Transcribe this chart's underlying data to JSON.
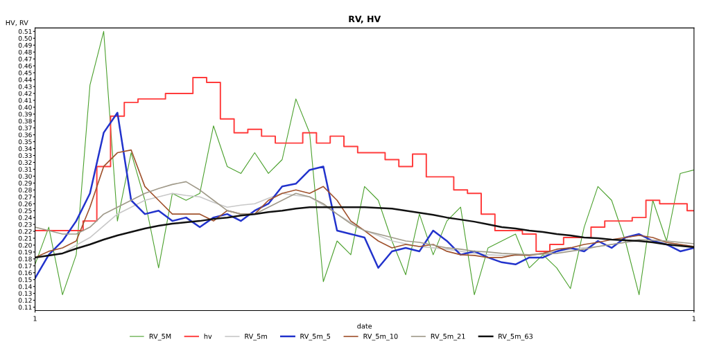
{
  "chart_data": {
    "type": "line",
    "title": "RV, HV",
    "xlabel": "date",
    "ylabel": "HV, RV",
    "categories": [
      "1",
      null,
      null,
      null,
      null,
      null,
      null,
      null,
      null,
      null,
      null,
      null,
      null,
      null,
      null,
      null,
      null,
      null,
      null,
      null,
      null,
      null,
      null,
      null,
      null,
      null,
      null,
      null,
      null,
      null,
      null,
      null,
      null,
      null,
      null,
      null,
      null,
      null,
      null,
      null,
      null,
      null,
      null,
      null,
      null,
      null,
      null,
      null,
      "1"
    ],
    "ylim": [
      0.105,
      0.515
    ],
    "yticks": [
      0.11,
      0.12,
      0.13,
      0.14,
      0.15,
      0.16,
      0.17,
      0.18,
      0.19,
      {
        "value": 0.2,
        "label": "0.20"
      },
      0.21,
      0.22,
      0.23,
      0.24,
      0.25,
      0.26,
      0.27,
      0.28,
      0.29,
      {
        "value": 0.3,
        "label": "0.30"
      },
      0.31,
      0.32,
      0.33,
      0.34,
      0.35,
      0.36,
      0.37,
      0.38,
      0.39,
      {
        "value": 0.4,
        "label": "0.40"
      },
      0.41,
      0.42,
      0.43,
      0.44,
      0.45,
      0.46,
      0.47,
      0.48,
      0.49,
      {
        "value": 0.5,
        "label": "0.50"
      },
      0.51
    ],
    "legend": "bottom",
    "series": [
      {
        "name": "RV_5M",
        "color": "#4aa02c",
        "values": [
          0.172,
          0.226,
          0.128,
          0.186,
          0.432,
          0.51,
          0.235,
          0.334,
          0.265,
          0.167,
          0.275,
          0.265,
          0.275,
          0.373,
          0.314,
          0.304,
          0.334,
          0.304,
          0.324,
          0.412,
          0.363,
          0.147,
          0.206,
          0.186,
          0.285,
          0.265,
          0.206,
          0.157,
          0.245,
          0.186,
          0.235,
          0.255,
          0.128,
          0.196,
          0.206,
          0.216,
          0.167,
          0.186,
          0.167,
          0.137,
          0.226,
          0.285,
          0.265,
          0.206,
          0.128,
          0.265,
          0.206,
          0.304,
          0.309
        ]
      },
      {
        "name": "hv",
        "color": "#ff3b3b",
        "type": "step",
        "values": [
          0.221,
          0.221,
          0.221,
          0.221,
          0.235,
          0.314,
          0.387,
          0.407,
          0.412,
          0.412,
          0.42,
          0.42,
          0.443,
          0.436,
          0.383,
          0.363,
          0.368,
          0.358,
          0.348,
          0.348,
          0.363,
          0.348,
          0.358,
          0.343,
          0.334,
          0.334,
          0.324,
          0.314,
          0.332,
          0.299,
          0.299,
          0.28,
          0.275,
          0.245,
          0.221,
          0.221,
          0.216,
          0.191,
          0.201,
          0.211,
          0.211,
          0.226,
          0.235,
          0.235,
          0.24,
          0.265,
          0.26,
          0.26,
          0.25
        ]
      },
      {
        "name": "RV_5m",
        "color": "#c8c8c8",
        "values": [
          0.182,
          0.185,
          0.188,
          0.2,
          0.211,
          0.228,
          0.245,
          0.255,
          0.265,
          0.27,
          0.275,
          0.272,
          0.27,
          0.262,
          0.255,
          0.258,
          0.26,
          0.268,
          0.275,
          0.272,
          0.27,
          0.258,
          0.245,
          0.233,
          0.221,
          0.214,
          0.206,
          0.202,
          0.198,
          0.196,
          0.194,
          0.191,
          0.188,
          0.186,
          0.185,
          0.185,
          0.186,
          0.188,
          0.191,
          0.194,
          0.196,
          0.198,
          0.201,
          0.204,
          0.206,
          0.205,
          0.204,
          0.201,
          0.198
        ]
      },
      {
        "name": "RV_5m_5",
        "color": "#2233cc",
        "values": [
          0.152,
          0.186,
          0.206,
          0.235,
          0.275,
          0.363,
          0.392,
          0.265,
          0.245,
          0.25,
          0.235,
          0.24,
          0.226,
          0.24,
          0.245,
          0.235,
          0.25,
          0.26,
          0.285,
          0.289,
          0.309,
          0.314,
          0.221,
          0.216,
          0.211,
          0.167,
          0.191,
          0.196,
          0.191,
          0.221,
          0.206,
          0.186,
          0.191,
          0.182,
          0.175,
          0.172,
          0.182,
          0.182,
          0.191,
          0.196,
          0.191,
          0.206,
          0.196,
          0.211,
          0.216,
          0.206,
          0.201,
          0.191,
          0.196
        ]
      },
      {
        "name": "RV_5m_10",
        "color": "#a0522d",
        "values": [
          0.182,
          0.191,
          0.196,
          0.206,
          0.255,
          0.314,
          0.334,
          0.338,
          0.285,
          0.265,
          0.245,
          0.245,
          0.245,
          0.235,
          0.25,
          0.245,
          0.245,
          0.265,
          0.275,
          0.28,
          0.275,
          0.285,
          0.265,
          0.235,
          0.221,
          0.206,
          0.196,
          0.201,
          0.198,
          0.201,
          0.191,
          0.186,
          0.185,
          0.182,
          0.182,
          0.186,
          0.185,
          0.188,
          0.194,
          0.196,
          0.201,
          0.204,
          0.208,
          0.211,
          0.214,
          0.211,
          0.204,
          0.201,
          0.198
        ]
      },
      {
        "name": "RV_5m_21",
        "color": "#a09a8a",
        "values": [
          0.226,
          0.221,
          0.216,
          0.216,
          0.226,
          0.245,
          0.255,
          0.265,
          0.275,
          0.282,
          0.288,
          0.292,
          0.28,
          0.265,
          0.25,
          0.245,
          0.245,
          0.255,
          0.265,
          0.275,
          0.27,
          0.26,
          0.245,
          0.231,
          0.221,
          0.216,
          0.211,
          0.206,
          0.204,
          0.2,
          0.196,
          0.194,
          0.191,
          0.19,
          0.188,
          0.187,
          0.186,
          0.187,
          0.188,
          0.191,
          0.194,
          0.198,
          0.201,
          0.204,
          0.208,
          0.207,
          0.206,
          0.204,
          0.202
        ]
      },
      {
        "name": "RV_5m_63",
        "color": "#111111",
        "values": [
          0.182,
          0.185,
          0.188,
          0.195,
          0.201,
          0.208,
          0.214,
          0.219,
          0.224,
          0.228,
          0.231,
          0.233,
          0.235,
          0.238,
          0.24,
          0.243,
          0.245,
          0.248,
          0.25,
          0.253,
          0.255,
          0.255,
          0.255,
          0.255,
          0.255,
          0.254,
          0.253,
          0.25,
          0.247,
          0.244,
          0.24,
          0.237,
          0.234,
          0.23,
          0.226,
          0.224,
          0.221,
          0.219,
          0.216,
          0.214,
          0.211,
          0.21,
          0.208,
          0.207,
          0.206,
          0.204,
          0.201,
          0.199,
          0.197
        ]
      }
    ]
  }
}
